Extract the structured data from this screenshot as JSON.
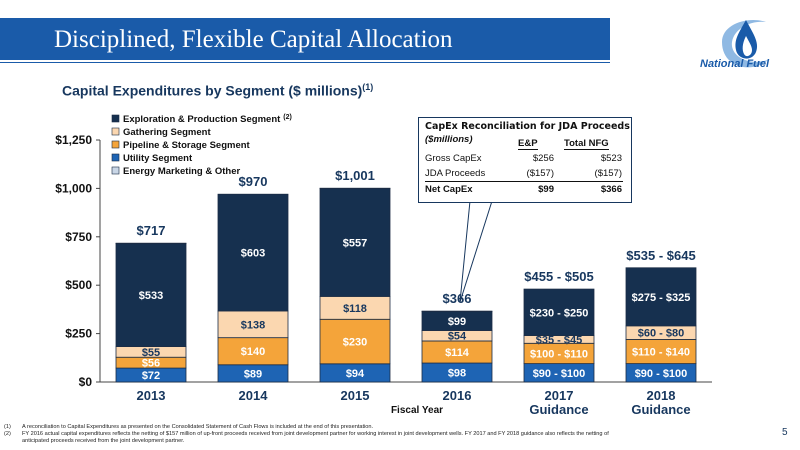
{
  "header": {
    "title": "Disciplined, Flexible Capital Allocation",
    "logo_text": "National Fuel"
  },
  "subtitle": {
    "text": "Capital Expenditures by Segment ($ millions)",
    "sup": "(1)"
  },
  "chart_data": {
    "type": "bar",
    "stacked": true,
    "categories": [
      "2013",
      "2014",
      "2015",
      "2016",
      "2017 Guidance",
      "2018 Guidance"
    ],
    "category_lines": [
      [
        "2013"
      ],
      [
        "2014"
      ],
      [
        "2015"
      ],
      [
        "2016"
      ],
      [
        "2017",
        "Guidance"
      ],
      [
        "2018",
        "Guidance"
      ]
    ],
    "xlabel": "Fiscal Year",
    "ylim": [
      0,
      1250
    ],
    "yticks": [
      "$0",
      "$250",
      "$500",
      "$750",
      "$1,000",
      "$1,250"
    ],
    "series": [
      {
        "name": "Utility Segment",
        "color": "#1e64b4",
        "values": [
          72,
          89,
          94,
          98,
          95,
          95
        ],
        "labels": [
          "$72",
          "$89",
          "$94",
          "$98",
          "$90 - $100",
          "$90 - $100"
        ]
      },
      {
        "name": "Pipeline & Storage Segment",
        "color": "#f4a43a",
        "values": [
          56,
          140,
          230,
          114,
          105,
          125
        ],
        "labels": [
          "$56",
          "$140",
          "$230",
          "$114",
          "$100 - $110",
          "$110 - $140"
        ]
      },
      {
        "name": "Gathering Segment",
        "color": "#fbd7b0",
        "values": [
          55,
          138,
          118,
          54,
          40,
          70
        ],
        "labels": [
          "$55",
          "$138",
          "$118",
          "$54",
          "$35 - $45",
          "$60 - $80"
        ]
      },
      {
        "name": "Exploration & Production Segment",
        "name_sup": "(2)",
        "color": "#16304f",
        "values": [
          533,
          603,
          557,
          99,
          240,
          300
        ],
        "labels": [
          "$533",
          "$603",
          "$557",
          "$99",
          "$230 - $250",
          "$275 - $325"
        ]
      },
      {
        "name": "Energy Marketing & Other",
        "color": "#c9d6e6",
        "values": [
          1,
          0,
          2,
          1,
          0,
          0
        ],
        "labels": [
          "",
          "",
          "",
          "",
          "",
          ""
        ]
      }
    ],
    "totals": [
      "$717",
      "$970",
      "$1,001",
      "$366",
      "$455 - $505",
      "$535 - $645"
    ],
    "legend_order": [
      3,
      2,
      1,
      0,
      4
    ],
    "legend_position": "top-left",
    "grid": false
  },
  "reconciliation": {
    "title": "CapEx Reconciliation for JDA Proceeds",
    "subtitle": "($millions)",
    "columns": [
      "E&P",
      "Total NFG"
    ],
    "rows": [
      {
        "label": "Gross CapEx",
        "ep": "$256",
        "total": "$523",
        "bold": false
      },
      {
        "label": "JDA Proceeds",
        "ep": "($157)",
        "total": "($157)",
        "bold": false
      },
      {
        "label": "Net CapEx",
        "ep": "$99",
        "total": "$366",
        "bold": true
      }
    ]
  },
  "footnotes": [
    {
      "num": "(1)",
      "text": "A reconciliation to Capital Expenditures as presented on the Consolidated Statement of Cash Flows is included at the end of this presentation."
    },
    {
      "num": "(2)",
      "text": "FY 2016 actual capital expenditures reflects the netting of $157 million of up-front proceeds received from joint development partner for working interest in joint development wells.  FY 2017 and FY 2018 guidance also reflects the netting of"
    },
    {
      "num": "",
      "text": "anticipated proceeds received from the joint development partner."
    }
  ],
  "page_number": "5"
}
